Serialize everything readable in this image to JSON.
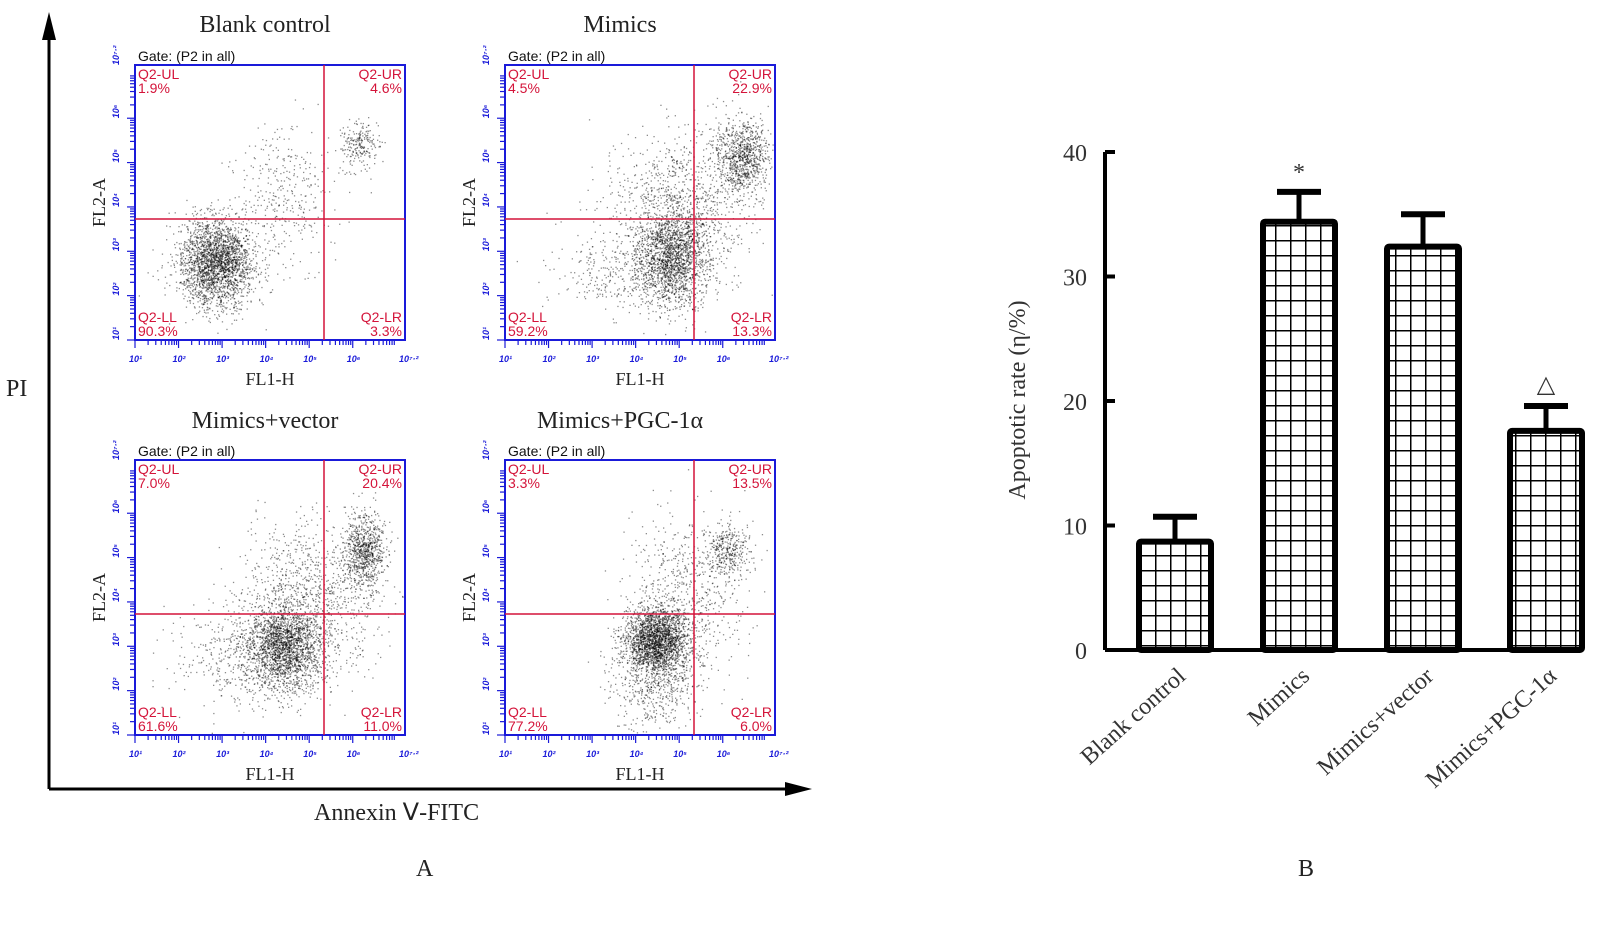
{
  "panel_a": {
    "label": "A",
    "x_axis_label": "Annexin Ⅴ-FITC",
    "y_axis_label": "PI",
    "plots": [
      {
        "title": "Blank control",
        "gate": "Gate: (P2 in all)",
        "x_label": "FL1-H",
        "y_label": "FL2-A",
        "quadrants": {
          "UL": {
            "name": "Q2-UL",
            "value": "1.9%"
          },
          "UR": {
            "name": "Q2-UR",
            "value": "4.6%"
          },
          "LL": {
            "name": "Q2-LL",
            "value": "90.3%"
          },
          "LR": {
            "name": "Q2-LR",
            "value": "3.3%"
          }
        }
      },
      {
        "title": "Mimics",
        "gate": "Gate: (P2 in all)",
        "x_label": "FL1-H",
        "y_label": "FL2-A",
        "quadrants": {
          "UL": {
            "name": "Q2-UL",
            "value": "4.5%"
          },
          "UR": {
            "name": "Q2-UR",
            "value": "22.9%"
          },
          "LL": {
            "name": "Q2-LL",
            "value": "59.2%"
          },
          "LR": {
            "name": "Q2-LR",
            "value": "13.3%"
          }
        }
      },
      {
        "title": "Mimics+vector",
        "gate": "Gate: (P2 in all)",
        "x_label": "FL1-H",
        "y_label": "FL2-A",
        "quadrants": {
          "UL": {
            "name": "Q2-UL",
            "value": "7.0%"
          },
          "UR": {
            "name": "Q2-UR",
            "value": "20.4%"
          },
          "LL": {
            "name": "Q2-LL",
            "value": "61.6%"
          },
          "LR": {
            "name": "Q2-LR",
            "value": "11.0%"
          }
        }
      },
      {
        "title": "Mimics+PGC-1α",
        "gate": "Gate: (P2 in all)",
        "x_label": "FL1-H",
        "y_label": "FL2-A",
        "quadrants": {
          "UL": {
            "name": "Q2-UL",
            "value": "3.3%"
          },
          "UR": {
            "name": "Q2-UR",
            "value": "13.5%"
          },
          "LL": {
            "name": "Q2-LL",
            "value": "77.2%"
          },
          "LR": {
            "name": "Q2-LR",
            "value": "6.0%"
          }
        }
      }
    ],
    "x_ticks": [
      "10¹",
      "10²",
      "10³",
      "10⁴",
      "10⁵",
      "10⁶",
      "10⁷·²"
    ],
    "y_ticks": [
      "10¹",
      "10²",
      "10³",
      "10⁴",
      "10⁵",
      "10⁶",
      "10⁷·²"
    ]
  },
  "chart_data": {
    "type": "bar",
    "panel_label": "B",
    "title": "",
    "xlabel": "",
    "ylabel": "Apoptotic rate (η/%)",
    "categories": [
      "Blank control",
      "Mimics",
      "Mimics+vector",
      "Mimics+PGC-1α"
    ],
    "values": [
      8.7,
      34.4,
      32.4,
      17.6
    ],
    "errors": [
      2.0,
      2.4,
      2.6,
      2.0
    ],
    "annotations": [
      "",
      "*",
      "",
      "△"
    ],
    "ylim": [
      0,
      40
    ],
    "yticks": [
      0,
      10,
      20,
      30,
      40
    ],
    "grid": false,
    "legend": "none",
    "fill_pattern": "grid-hatch"
  }
}
